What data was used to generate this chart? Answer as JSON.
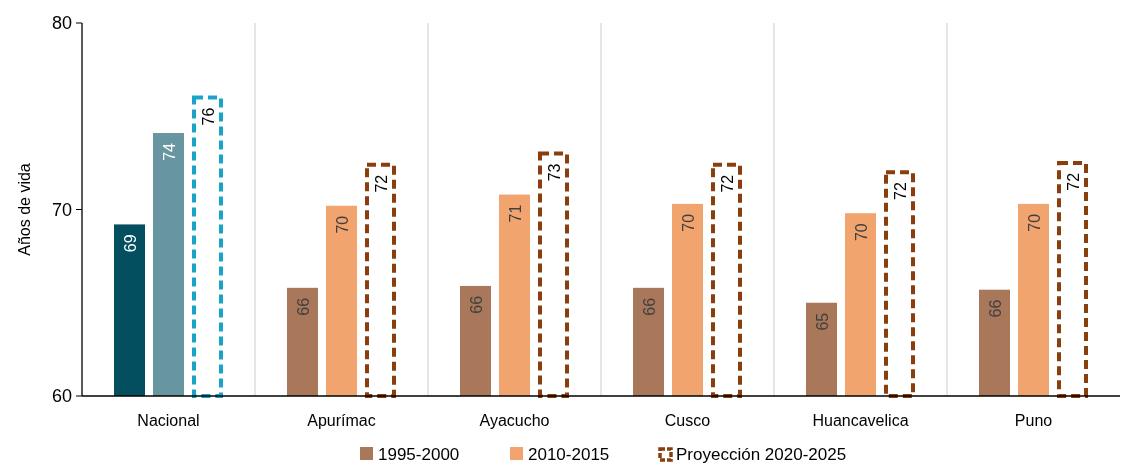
{
  "chart_data": {
    "type": "bar",
    "ylabel": "Años de vida",
    "categories": [
      "Nacional",
      "Apurímac",
      "Ayacucho",
      "Cusco",
      "Huancavelica",
      "Puno"
    ],
    "ylim": [
      60,
      80
    ],
    "yticks": [
      60,
      70,
      80
    ],
    "grid": "x",
    "legend": "bottom",
    "series": [
      {
        "name": "1995-2000",
        "color": "#a9775a",
        "colors": [
          "#034f5f",
          "#a9775a",
          "#a9775a",
          "#a9775a",
          "#a9775a",
          "#a9775a"
        ],
        "values": [
          69.2,
          65.8,
          65.9,
          65.8,
          65.0,
          65.7
        ],
        "value_labels": [
          "69",
          "66",
          "66",
          "66",
          "65",
          "66"
        ]
      },
      {
        "name": "2010-2015",
        "color": "#f2a46f",
        "colors": [
          "#6795a0",
          "#f2a46f",
          "#f2a46f",
          "#f2a46f",
          "#f2a46f",
          "#f2a46f"
        ],
        "values": [
          74.1,
          70.2,
          70.8,
          70.3,
          69.8,
          70.3
        ],
        "value_labels": [
          "74",
          "70",
          "71",
          "70",
          "70",
          "70"
        ]
      },
      {
        "name": "Proyección 2020-2025",
        "color": "#8b3e0d",
        "colors": [
          "#1aa3c9",
          "#8b3e0d",
          "#8b3e0d",
          "#8b3e0d",
          "#8b3e0d",
          "#8b3e0d"
        ],
        "line_style": "dashed",
        "values": [
          76.0,
          72.4,
          73.0,
          72.4,
          72.0,
          72.5
        ],
        "value_labels": [
          "76",
          "72",
          "73",
          "72",
          "72",
          "72"
        ]
      }
    ]
  }
}
